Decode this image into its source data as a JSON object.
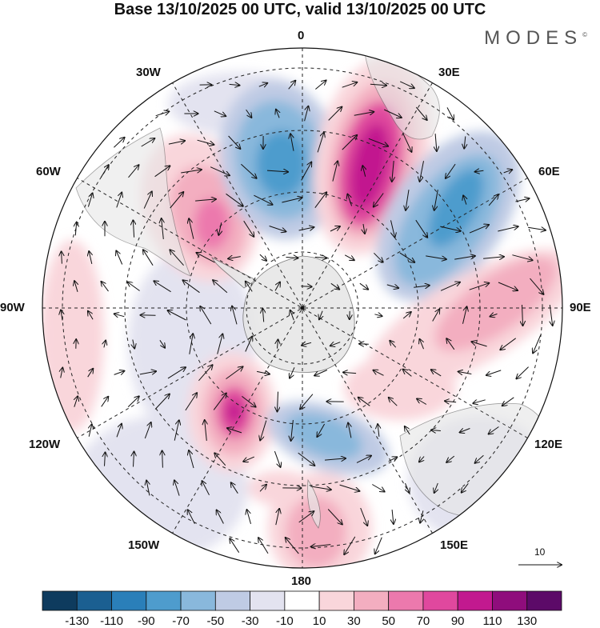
{
  "title": "Base 13/10/2025 00 UTC, valid 13/10/2025 00 UTC",
  "brand": "MODES",
  "brand_mark": "©",
  "longitude_labels": {
    "n": "0",
    "e30": "30E",
    "e60": "60E",
    "e90": "90E",
    "e120": "120E",
    "e150": "150E",
    "s": "180",
    "w150": "150W",
    "w120": "120W",
    "w90": "90W",
    "w60": "60W",
    "w30": "30W"
  },
  "vector_scale": {
    "label": "10",
    "reference_speed": 10
  },
  "colorbar": {
    "ticks": [
      "-130",
      "-110",
      "-90",
      "-70",
      "-50",
      "-30",
      "-10",
      "10",
      "30",
      "50",
      "70",
      "90",
      "110",
      "130"
    ],
    "colors": [
      "#0e3b5e",
      "#1b5f91",
      "#2a7fb9",
      "#4e9ccd",
      "#89b8dc",
      "#bfcbe4",
      "#e3e3f0",
      "#ffffff",
      "#f9d6db",
      "#f3aec0",
      "#ec79ad",
      "#e0489e",
      "#c2198f",
      "#8f0d7c",
      "#5c0a68"
    ]
  },
  "land_color": "#e6e6e6",
  "grid_color": "#222222"
}
